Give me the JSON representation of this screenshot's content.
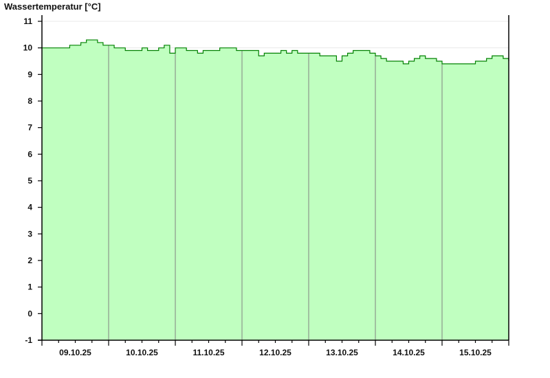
{
  "chart_data": {
    "type": "area",
    "title": "Wassertemperatur [°C]",
    "xlabel": "",
    "ylabel": "",
    "ylim": [
      -1,
      11
    ],
    "yticks": [
      -1,
      0,
      1,
      2,
      3,
      4,
      5,
      6,
      7,
      8,
      9,
      10,
      11
    ],
    "xlim": [
      "2025-10-09T00:00",
      "2025-10-16T00:00"
    ],
    "xtick_labels": [
      "09.10.25",
      "10.10.25",
      "11.10.25",
      "12.10.25",
      "13.10.25",
      "14.10.25",
      "15.10.25"
    ],
    "grid": "horizontal gridlines at 10 and 11; vertical day separators",
    "colors": {
      "line": "#008000",
      "fill": "#c0ffc0",
      "separator": "#808080"
    },
    "series_interval_hours": 2,
    "values": [
      10.0,
      10.0,
      10.0,
      10.0,
      10.0,
      10.1,
      10.1,
      10.2,
      10.3,
      10.3,
      10.2,
      10.1,
      10.1,
      10.0,
      10.0,
      9.9,
      9.9,
      9.9,
      10.0,
      9.9,
      9.9,
      10.0,
      10.1,
      9.8,
      10.0,
      10.0,
      9.9,
      9.9,
      9.8,
      9.9,
      9.9,
      9.9,
      10.0,
      10.0,
      10.0,
      9.9,
      9.9,
      9.9,
      9.9,
      9.7,
      9.8,
      9.8,
      9.8,
      9.9,
      9.8,
      9.9,
      9.8,
      9.8,
      9.8,
      9.8,
      9.7,
      9.7,
      9.7,
      9.5,
      9.7,
      9.8,
      9.9,
      9.9,
      9.9,
      9.8,
      9.7,
      9.6,
      9.5,
      9.5,
      9.5,
      9.4,
      9.5,
      9.6,
      9.7,
      9.6,
      9.6,
      9.5,
      9.4,
      9.4,
      9.4,
      9.4,
      9.4,
      9.4,
      9.5,
      9.5,
      9.6,
      9.7,
      9.7,
      9.6,
      9.5
    ]
  }
}
